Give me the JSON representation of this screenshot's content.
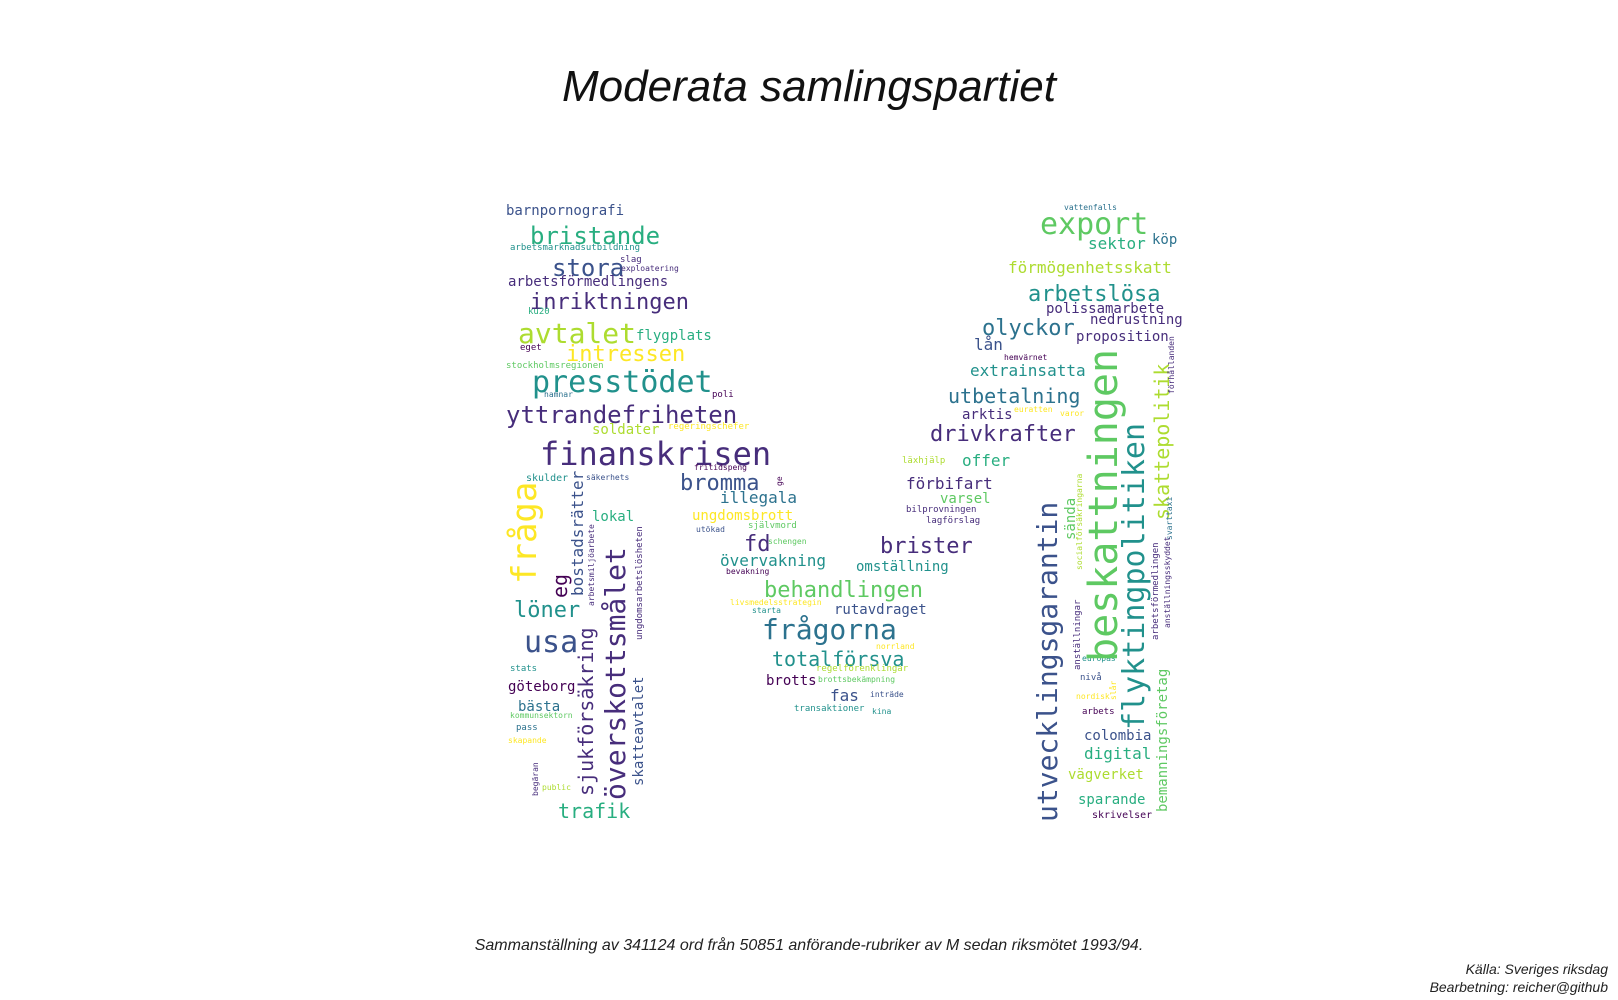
{
  "title": "Moderata samlingspartiet",
  "caption": "Sammanställning av 341124 ord från 50851 anförande-rubriker av M sedan riksmötet 1993/94.",
  "source": {
    "line1": "Källa: Sveriges riksdag",
    "line2": "Bearbetning: reicher@github"
  },
  "palette": {
    "darkpurple": "#440154",
    "indigo": "#472d7b",
    "slate": "#3b528b",
    "blue": "#2c728e",
    "teal": "#21918c",
    "green": "#28ae80",
    "lime": "#5ec962",
    "yellowgreen": "#addc30",
    "yellow": "#fde725"
  },
  "words": [
    {
      "t": "barnpornografi",
      "s": 14,
      "c": "#3b528b"
    },
    {
      "t": "bristande",
      "s": 24,
      "c": "#28ae80"
    },
    {
      "t": "arbetsmarknadsutbildning",
      "s": 9,
      "c": "#21918c"
    },
    {
      "t": "stora",
      "s": 24,
      "c": "#3b528b"
    },
    {
      "t": "slag",
      "s": 9,
      "c": "#472d7b"
    },
    {
      "t": "exploatering",
      "s": 8,
      "c": "#472d7b"
    },
    {
      "t": "arbetsförmedlingens",
      "s": 14,
      "c": "#472d7b"
    },
    {
      "t": "inriktningen",
      "s": 22,
      "c": "#472d7b"
    },
    {
      "t": "ku20",
      "s": 9,
      "c": "#28ae80"
    },
    {
      "t": "avtalet",
      "s": 28,
      "c": "#addc30"
    },
    {
      "t": "flygplats",
      "s": 14,
      "c": "#28ae80"
    },
    {
      "t": "eget",
      "s": 9,
      "c": "#440154"
    },
    {
      "t": "intressen",
      "s": 22,
      "c": "#fde725"
    },
    {
      "t": "stockholmsregionen",
      "s": 9,
      "c": "#5ec962"
    },
    {
      "t": "presstödet",
      "s": 30,
      "c": "#21918c"
    },
    {
      "t": "hamnar",
      "s": 8,
      "c": "#2c728e"
    },
    {
      "t": "poli",
      "s": 9,
      "c": "#440154"
    },
    {
      "t": "yttrandefriheten",
      "s": 24,
      "c": "#472d7b"
    },
    {
      "t": "soldater",
      "s": 14,
      "c": "#addc30"
    },
    {
      "t": "regeringschefer",
      "s": 9,
      "c": "#fde725"
    },
    {
      "t": "finanskrisen",
      "s": 32,
      "c": "#472d7b"
    },
    {
      "t": "fritidspeng",
      "s": 8,
      "c": "#440154"
    },
    {
      "t": "bromma",
      "s": 22,
      "c": "#3b528b"
    },
    {
      "t": "illegala",
      "s": 16,
      "c": "#2c728e"
    },
    {
      "t": "skulder",
      "s": 10,
      "c": "#21918c"
    },
    {
      "t": "säkerhets",
      "s": 8,
      "c": "#3b528b"
    },
    {
      "t": "ungdomsbrott",
      "s": 14,
      "c": "#fde725"
    },
    {
      "t": "lokal",
      "s": 14,
      "c": "#28ae80"
    },
    {
      "t": "utökad",
      "s": 8,
      "c": "#3b528b"
    },
    {
      "t": "självmord",
      "s": 9,
      "c": "#5ec962"
    },
    {
      "t": "fd",
      "s": 22,
      "c": "#472d7b"
    },
    {
      "t": "schengen",
      "s": 8,
      "c": "#5ec962"
    },
    {
      "t": "övervakning",
      "s": 16,
      "c": "#21918c"
    },
    {
      "t": "bevakning",
      "s": 8,
      "c": "#440154"
    },
    {
      "t": "behandlingen",
      "s": 22,
      "c": "#5ec962"
    },
    {
      "t": "livsmedelsstrategin",
      "s": 8,
      "c": "#fde725"
    },
    {
      "t": "starta",
      "s": 8,
      "c": "#21918c"
    },
    {
      "t": "löner",
      "s": 22,
      "c": "#21918c"
    },
    {
      "t": "usa",
      "s": 30,
      "c": "#3b528b"
    },
    {
      "t": "frågorna",
      "s": 28,
      "c": "#2c728e"
    },
    {
      "t": "rutavdraget",
      "s": 14,
      "c": "#3b528b"
    },
    {
      "t": "norrland",
      "s": 8,
      "c": "#fde725"
    },
    {
      "t": "totalförsva",
      "s": 20,
      "c": "#21918c"
    },
    {
      "t": "regelförenklingar",
      "s": 9,
      "c": "#addc30"
    },
    {
      "t": "stats",
      "s": 9,
      "c": "#21918c"
    },
    {
      "t": "göteborg",
      "s": 14,
      "c": "#440154"
    },
    {
      "t": "brotts",
      "s": 14,
      "c": "#440154"
    },
    {
      "t": "brottsbekämpning",
      "s": 8,
      "c": "#5ec962"
    },
    {
      "t": "bästa",
      "s": 14,
      "c": "#2c728e"
    },
    {
      "t": "fas",
      "s": 16,
      "c": "#3b528b"
    },
    {
      "t": "inträde",
      "s": 8,
      "c": "#3b528b"
    },
    {
      "t": "kommunsektorn",
      "s": 8,
      "c": "#5ec962"
    },
    {
      "t": "transaktioner",
      "s": 9,
      "c": "#21918c"
    },
    {
      "t": "kina",
      "s": 8,
      "c": "#21918c"
    },
    {
      "t": "pass",
      "s": 9,
      "c": "#2c728e"
    },
    {
      "t": "skapande",
      "s": 8,
      "c": "#fde725"
    },
    {
      "t": "public",
      "s": 8,
      "c": "#addc30"
    },
    {
      "t": "trafik",
      "s": 20,
      "c": "#28ae80"
    },
    {
      "t": "läxhjälp",
      "s": 9,
      "c": "#addc30"
    },
    {
      "t": "offer",
      "s": 16,
      "c": "#28ae80"
    },
    {
      "t": "förbifart",
      "s": 16,
      "c": "#472d7b"
    },
    {
      "t": "varsel",
      "s": 14,
      "c": "#5ec962"
    },
    {
      "t": "bilprovningen",
      "s": 9,
      "c": "#472d7b"
    },
    {
      "t": "lagförslag",
      "s": 9,
      "c": "#472d7b"
    },
    {
      "t": "brister",
      "s": 22,
      "c": "#472d7b"
    },
    {
      "t": "omställning",
      "s": 14,
      "c": "#21918c"
    },
    {
      "t": "vattenfalls",
      "s": 8,
      "c": "#2c728e"
    },
    {
      "t": "export",
      "s": 30,
      "c": "#5ec962"
    },
    {
      "t": "sektor",
      "s": 16,
      "c": "#28ae80"
    },
    {
      "t": "köp",
      "s": 14,
      "c": "#2c728e"
    },
    {
      "t": "förmögenhetsskatt",
      "s": 16,
      "c": "#addc30"
    },
    {
      "t": "arbetslösa",
      "s": 22,
      "c": "#21918c"
    },
    {
      "t": "polissamarbete",
      "s": 14,
      "c": "#472d7b"
    },
    {
      "t": "nedrustning",
      "s": 14,
      "c": "#472d7b"
    },
    {
      "t": "olyckor",
      "s": 22,
      "c": "#2c728e"
    },
    {
      "t": "proposition",
      "s": 14,
      "c": "#472d7b"
    },
    {
      "t": "lån",
      "s": 16,
      "c": "#3b528b"
    },
    {
      "t": "hemvärnet",
      "s": 8,
      "c": "#440154"
    },
    {
      "t": "extrainsatta",
      "s": 16,
      "c": "#21918c"
    },
    {
      "t": "utbetalning",
      "s": 20,
      "c": "#2c728e"
    },
    {
      "t": "arktis",
      "s": 14,
      "c": "#472d7b"
    },
    {
      "t": "euratten",
      "s": 8,
      "c": "#fde725"
    },
    {
      "t": "varor",
      "s": 8,
      "c": "#fde725"
    },
    {
      "t": "drivkrafter",
      "s": 22,
      "c": "#472d7b"
    },
    {
      "t": "colombia",
      "s": 14,
      "c": "#3b528b"
    },
    {
      "t": "digital",
      "s": 16,
      "c": "#28ae80"
    },
    {
      "t": "vägverket",
      "s": 14,
      "c": "#addc30"
    },
    {
      "t": "sparande",
      "s": 14,
      "c": "#28ae80"
    },
    {
      "t": "skrivelser",
      "s": 10,
      "c": "#440154"
    },
    {
      "t": "arbets",
      "s": 9,
      "c": "#440154"
    },
    {
      "t": "nordisk",
      "s": 8,
      "c": "#fde725"
    },
    {
      "t": "nivå",
      "s": 9,
      "c": "#3b528b"
    },
    {
      "t": "europas",
      "s": 8,
      "c": "#21918c"
    }
  ],
  "vwords": [
    {
      "t": "fråga",
      "s": 34,
      "c": "#fde725"
    },
    {
      "t": "eg",
      "s": 20,
      "c": "#440154"
    },
    {
      "t": "bostadsrätter",
      "s": 16,
      "c": "#3b528b"
    },
    {
      "t": "arbetsmiljöarbete",
      "s": 8,
      "c": "#472d7b"
    },
    {
      "t": "sjukförsäkring",
      "s": 20,
      "c": "#472d7b"
    },
    {
      "t": "överskottsmålet",
      "s": 28,
      "c": "#472d7b"
    },
    {
      "t": "ungdomsarbetslösheten",
      "s": 9,
      "c": "#472d7b"
    },
    {
      "t": "skatteavtalet",
      "s": 14,
      "c": "#3b528b"
    },
    {
      "t": "begäran",
      "s": 8,
      "c": "#472d7b"
    },
    {
      "t": "ge",
      "s": 8,
      "c": "#440154"
    },
    {
      "t": "utvecklingsgarantin",
      "s": 28,
      "c": "#3b528b"
    },
    {
      "t": "beskattningen",
      "s": 40,
      "c": "#5ec962"
    },
    {
      "t": "flyktingpolitiken",
      "s": 30,
      "c": "#21918c"
    },
    {
      "t": "skattepolitik",
      "s": 20,
      "c": "#addc30"
    },
    {
      "t": "bemanningsföretag",
      "s": 14,
      "c": "#5ec962"
    },
    {
      "t": "förhållanden",
      "s": 8,
      "c": "#472d7b"
    },
    {
      "t": "svarttaxi",
      "s": 8,
      "c": "#2c728e"
    },
    {
      "t": "arbetsförmedlingen",
      "s": 9,
      "c": "#472d7b"
    },
    {
      "t": "anställningsskyddet",
      "s": 8,
      "c": "#472d7b"
    },
    {
      "t": "sända",
      "s": 14,
      "c": "#5ec962"
    },
    {
      "t": "socialförsäkringarna",
      "s": 8,
      "c": "#addc30"
    },
    {
      "t": "anställningar",
      "s": 9,
      "c": "#472d7b"
    },
    {
      "t": "slår",
      "s": 8,
      "c": "#fde725"
    }
  ]
}
